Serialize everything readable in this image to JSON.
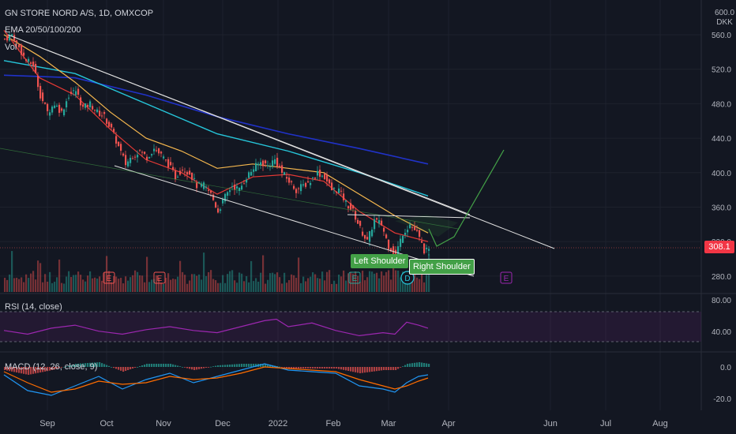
{
  "header": {
    "title": "GN STORE NORD A/S, 1D, OMXCOP",
    "ema_label": "EMA 20/50/100/200",
    "vol_label": "Vol",
    "currency_top": "600.0",
    "currency": "DKK"
  },
  "annotations": {
    "left_shoulder": "Left Shoulder",
    "right_shoulder": "Right Shoulder",
    "earnings_marker": "E",
    "dividend_marker": "D"
  },
  "last_price": "308.1",
  "colors": {
    "background": "#131722",
    "up": "#26a69a",
    "down": "#ef5350",
    "ema20": "#e53935",
    "ema50": "#f5b74e",
    "ema100": "#26c6da",
    "ema200": "#2032c8",
    "rsi": "#9c27b0",
    "macd": "#2196f3",
    "signal": "#ff6d00",
    "trendline": "#e0e0e0",
    "projection": "#43a047"
  },
  "chart_data": [
    {
      "type": "candlestick",
      "title": "GN STORE NORD A/S, 1D, OMXCOP",
      "ylim": [
        260,
        600
      ],
      "y_ticks": [
        280.0,
        320.0,
        360.0,
        400.0,
        440.0,
        480.0,
        520.0,
        560.0
      ],
      "x_ticks": [
        "Sep",
        "Oct",
        "Nov",
        "Dec",
        "2022",
        "Feb",
        "Mar",
        "Apr",
        "Jun",
        "Jul",
        "Aug"
      ],
      "series": [
        {
          "name": "price",
          "close_keypoints": [
            [
              0,
              555
            ],
            [
              3,
              560
            ],
            [
              6,
              545
            ],
            [
              9,
              530
            ],
            [
              12,
              525
            ],
            [
              15,
              490
            ],
            [
              18,
              470
            ],
            [
              21,
              480
            ],
            [
              24,
              470
            ],
            [
              27,
              490
            ],
            [
              30,
              495
            ],
            [
              33,
              475
            ],
            [
              36,
              480
            ],
            [
              39,
              470
            ],
            [
              42,
              465
            ],
            [
              45,
              450
            ],
            [
              48,
              430
            ],
            [
              51,
              410
            ],
            [
              54,
              420
            ],
            [
              57,
              425
            ],
            [
              60,
              418
            ],
            [
              63,
              428
            ],
            [
              66,
              420
            ],
            [
              69,
              410
            ],
            [
              72,
              395
            ],
            [
              75,
              405
            ],
            [
              78,
              400
            ],
            [
              81,
              385
            ],
            [
              84,
              385
            ],
            [
              87,
              375
            ],
            [
              90,
              355
            ],
            [
              93,
              372
            ],
            [
              96,
              385
            ],
            [
              99,
              380
            ],
            [
              102,
              395
            ],
            [
              105,
              405
            ],
            [
              108,
              412
            ],
            [
              111,
              408
            ],
            [
              114,
              415
            ],
            [
              117,
              400
            ],
            [
              120,
              390
            ],
            [
              123,
              380
            ],
            [
              126,
              385
            ],
            [
              129,
              390
            ],
            [
              132,
              400
            ],
            [
              135,
              395
            ],
            [
              138,
              380
            ],
            [
              141,
              380
            ],
            [
              144,
              365
            ],
            [
              147,
              355
            ],
            [
              150,
              335
            ],
            [
              153,
              320
            ],
            [
              156,
              345
            ],
            [
              159,
              340
            ],
            [
              162,
              315
            ],
            [
              165,
              305
            ],
            [
              168,
              330
            ],
            [
              171,
              340
            ],
            [
              174,
              330
            ],
            [
              177,
              310
            ],
            [
              179,
              308
            ]
          ]
        }
      ],
      "ema": {
        "ema20": [
          [
            0,
            565
          ],
          [
            15,
            510
          ],
          [
            30,
            490
          ],
          [
            45,
            450
          ],
          [
            60,
            415
          ],
          [
            75,
            400
          ],
          [
            90,
            375
          ],
          [
            105,
            395
          ],
          [
            120,
            398
          ],
          [
            135,
            390
          ],
          [
            150,
            355
          ],
          [
            165,
            330
          ],
          [
            179,
            320
          ]
        ],
        "ema50": [
          [
            0,
            560
          ],
          [
            15,
            535
          ],
          [
            30,
            505
          ],
          [
            45,
            470
          ],
          [
            60,
            440
          ],
          [
            75,
            425
          ],
          [
            90,
            405
          ],
          [
            105,
            410
          ],
          [
            120,
            405
          ],
          [
            135,
            400
          ],
          [
            150,
            375
          ],
          [
            165,
            350
          ],
          [
            179,
            330
          ]
        ],
        "ema100": [
          [
            0,
            530
          ],
          [
            30,
            515
          ],
          [
            60,
            480
          ],
          [
            90,
            445
          ],
          [
            120,
            425
          ],
          [
            150,
            400
          ],
          [
            179,
            373
          ]
        ],
        "ema200": [
          [
            0,
            513
          ],
          [
            30,
            510
          ],
          [
            60,
            490
          ],
          [
            90,
            465
          ],
          [
            120,
            445
          ],
          [
            150,
            428
          ],
          [
            179,
            410
          ]
        ]
      },
      "volume_scale_max": 100
    },
    {
      "type": "line",
      "name": "RSI (14, close)",
      "ylim": [
        20,
        80
      ],
      "y_ticks": [
        80.0,
        40.0
      ],
      "bands": [
        70,
        30
      ],
      "points": [
        [
          0,
          45
        ],
        [
          10,
          40
        ],
        [
          20,
          48
        ],
        [
          30,
          52
        ],
        [
          40,
          44
        ],
        [
          50,
          40
        ],
        [
          60,
          46
        ],
        [
          70,
          50
        ],
        [
          80,
          45
        ],
        [
          90,
          42
        ],
        [
          100,
          50
        ],
        [
          110,
          58
        ],
        [
          115,
          60
        ],
        [
          120,
          50
        ],
        [
          130,
          55
        ],
        [
          140,
          45
        ],
        [
          150,
          38
        ],
        [
          160,
          42
        ],
        [
          165,
          40
        ],
        [
          170,
          56
        ],
        [
          175,
          52
        ],
        [
          179,
          48
        ]
      ]
    },
    {
      "type": "line",
      "name": "MACD (12, 26, close, 9)",
      "ylim": [
        -25,
        8
      ],
      "y_ticks": [
        0.0,
        -20.0
      ],
      "macd": [
        [
          0,
          -5
        ],
        [
          10,
          -15
        ],
        [
          20,
          -18
        ],
        [
          30,
          -12
        ],
        [
          40,
          -6
        ],
        [
          50,
          -14
        ],
        [
          60,
          -8
        ],
        [
          70,
          -4
        ],
        [
          80,
          -10
        ],
        [
          90,
          -6
        ],
        [
          100,
          -2
        ],
        [
          110,
          2
        ],
        [
          120,
          -2
        ],
        [
          130,
          -3
        ],
        [
          140,
          -4
        ],
        [
          150,
          -12
        ],
        [
          160,
          -14
        ],
        [
          165,
          -16
        ],
        [
          170,
          -10
        ],
        [
          175,
          -6
        ],
        [
          179,
          -5
        ]
      ],
      "signal": [
        [
          0,
          -3
        ],
        [
          10,
          -10
        ],
        [
          20,
          -16
        ],
        [
          30,
          -14
        ],
        [
          40,
          -9
        ],
        [
          50,
          -11
        ],
        [
          60,
          -10
        ],
        [
          70,
          -6
        ],
        [
          80,
          -8
        ],
        [
          90,
          -7
        ],
        [
          100,
          -4
        ],
        [
          110,
          0
        ],
        [
          120,
          -1
        ],
        [
          130,
          -2
        ],
        [
          140,
          -3
        ],
        [
          150,
          -8
        ],
        [
          160,
          -12
        ],
        [
          165,
          -14
        ],
        [
          170,
          -12
        ],
        [
          175,
          -9
        ],
        [
          179,
          -7
        ]
      ]
    }
  ]
}
